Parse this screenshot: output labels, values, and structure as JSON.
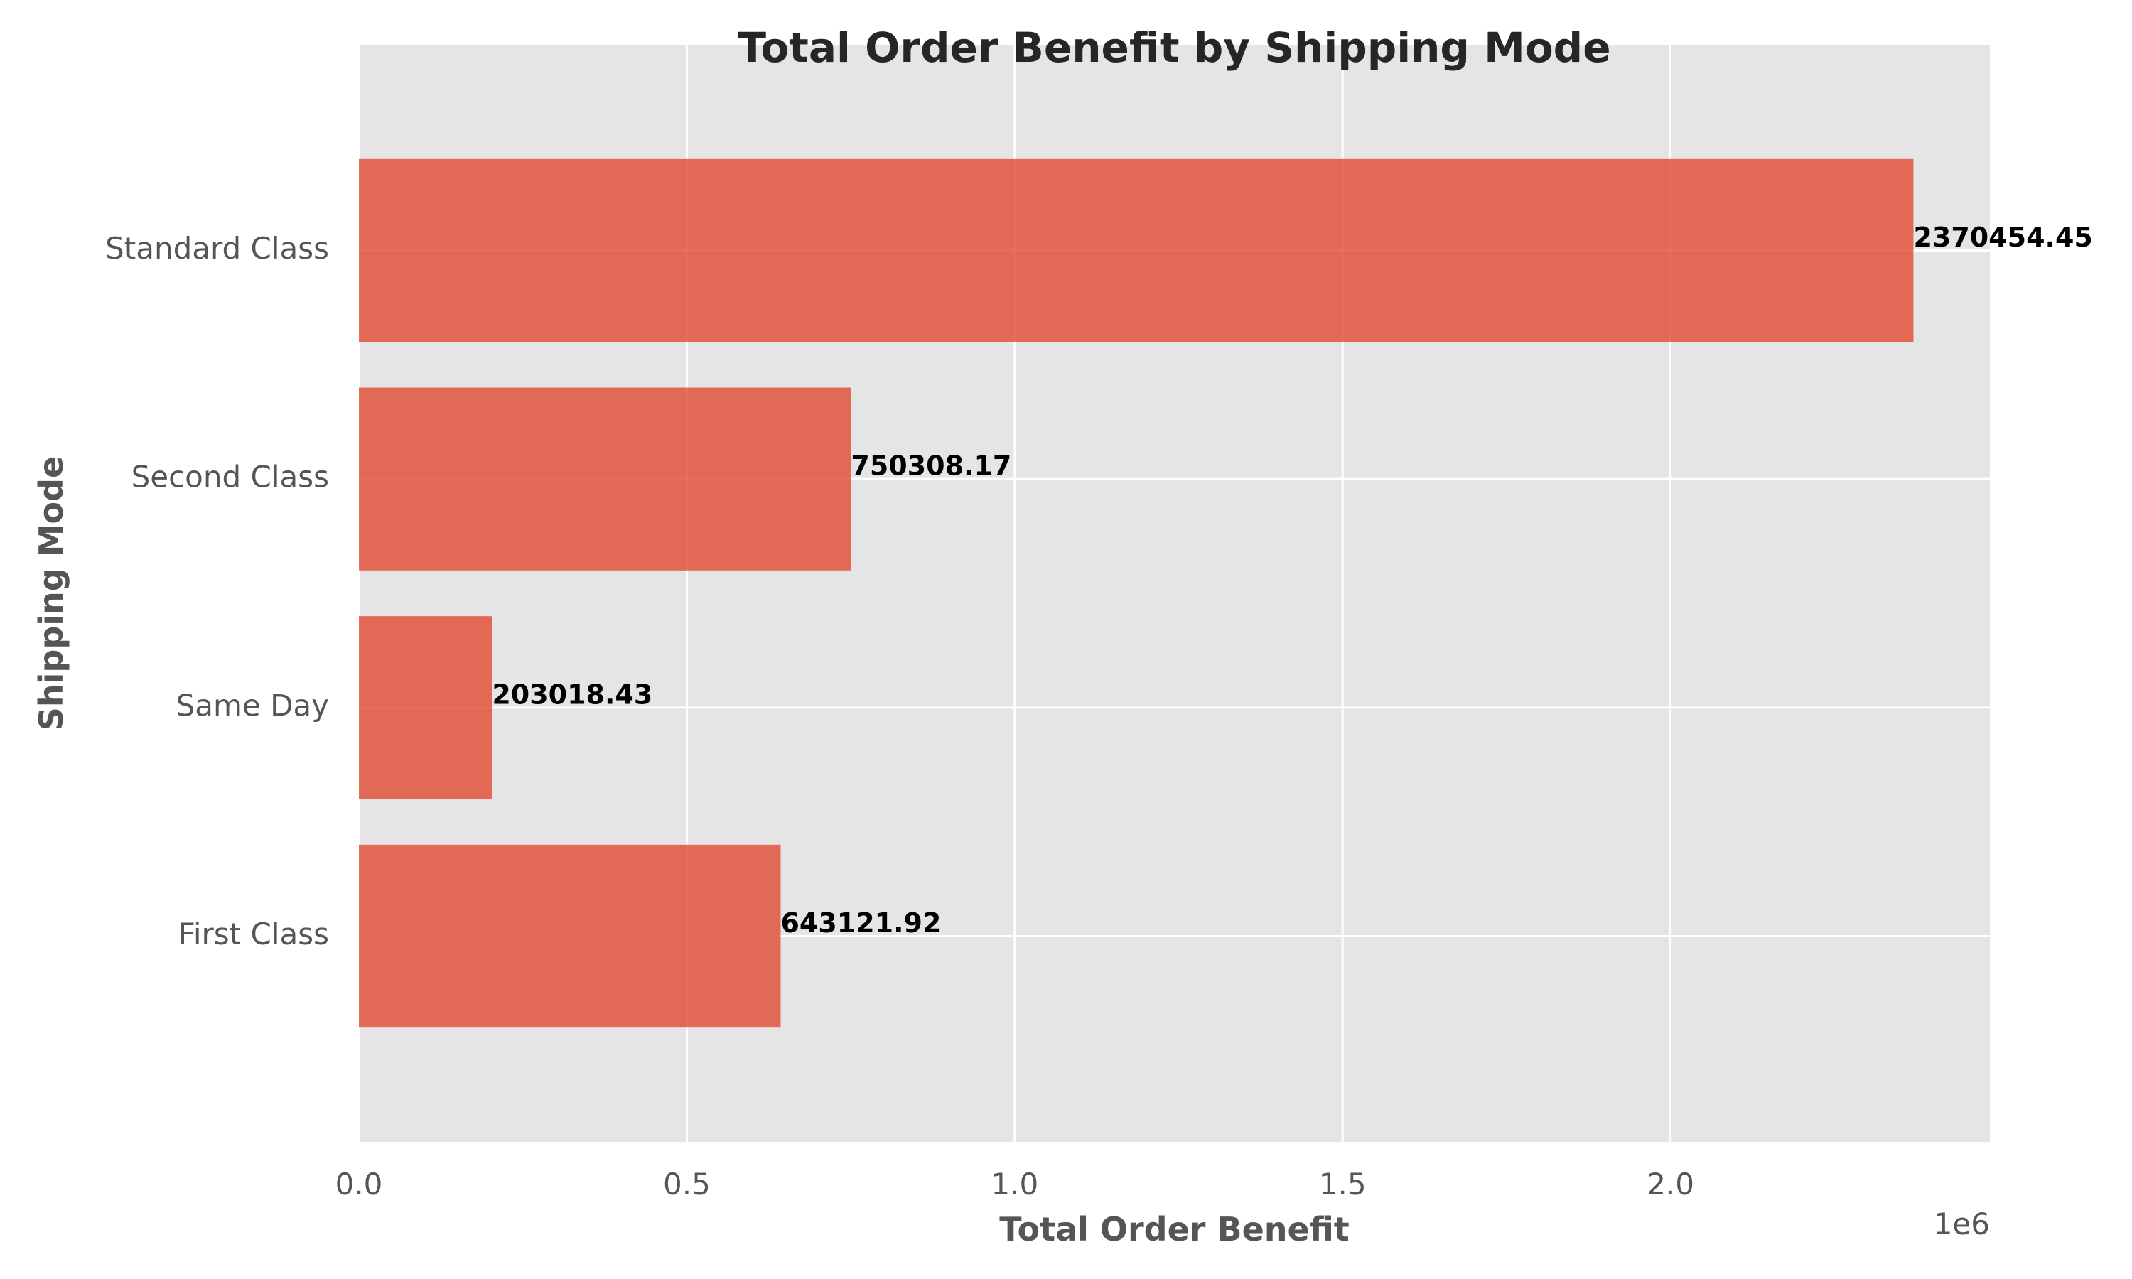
{
  "chart_data": {
    "type": "bar",
    "orientation": "horizontal",
    "title": "Total Order Benefit by Shipping Mode",
    "xlabel": "Total Order Benefit",
    "ylabel": "Shipping Mode",
    "x_offset_label": "1e6",
    "xlim": [
      0,
      2487000
    ],
    "x_ticks": [
      0,
      500000,
      1000000,
      1500000,
      2000000
    ],
    "x_tick_labels": [
      "0.0",
      "0.5",
      "1.0",
      "1.5",
      "2.0"
    ],
    "categories": [
      "First Class",
      "Same Day",
      "Second Class",
      "Standard Class"
    ],
    "values": [
      643121.92,
      203018.43,
      750308.17,
      2370454.45
    ],
    "value_labels": [
      "643121.92",
      "203018.43",
      "750308.17",
      "2370454.45"
    ],
    "grid": true,
    "legend": false,
    "colors": {
      "bar": "#e24a33",
      "plot_background": "#e5e5e5",
      "grid": "#ffffff"
    }
  }
}
